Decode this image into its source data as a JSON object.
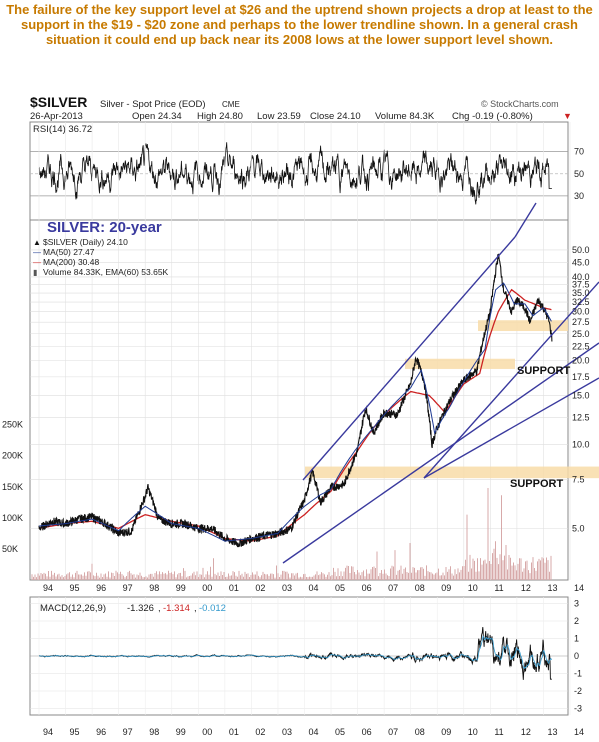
{
  "caption": "The failure of the key support level at $26 and the uptrend shown projects a drop at least to the support in the $19 - $20 zone and perhaps to the lower trendline shown. In a general crash situation it could end up back near its 2008 lows at the lower support level shown.",
  "header": {
    "symbol": "$SILVER",
    "name": "Silver - Spot Price (EOD)",
    "exchange": "CME",
    "date": "26-Apr-2013",
    "open": "Open 24.34",
    "high": "High 24.80",
    "low": "Low 23.59",
    "close": "Close 24.10",
    "volume": "Volume 84.3K",
    "chg": "Chg -0.19 (-0.80%)",
    "brand": "© StockCharts.com"
  },
  "colors": {
    "price": "#1a1a1a",
    "ma50": "#1f3a93",
    "ma200": "#cc2222",
    "trendline": "#3a3a9e",
    "support": "#f8dca8",
    "volume": "#d7a9a9",
    "caption": "#c77a00",
    "annotation": "#3a3a9e",
    "macd_signal": "#3399cc"
  },
  "chart_data": {
    "type": "line",
    "years": [
      "94",
      "95",
      "96",
      "97",
      "98",
      "99",
      "00",
      "01",
      "02",
      "03",
      "04",
      "05",
      "06",
      "07",
      "08",
      "09",
      "10",
      "11",
      "12",
      "13",
      "14"
    ],
    "annotations": {
      "title": "SILVER: 20-year",
      "support_upper": "SUPPORT",
      "support_lower": "SUPPORT"
    },
    "rsi": {
      "label": "RSI(14) 36.72",
      "value": 36.72,
      "ticks": [
        "70",
        "50",
        "30"
      ],
      "ylim": [
        10,
        95
      ]
    },
    "price": {
      "legend": [
        "$SILVER (Daily) 24.10",
        "MA(50) 27.47",
        "MA(200) 30.48",
        "Volume 84.33K, EMA(60) 53.65K"
      ],
      "ticks": [
        "50.0",
        "45.0",
        "40.0",
        "37.5",
        "35.0",
        "32.5",
        "30.0",
        "27.5",
        "25.0",
        "22.5",
        "20.0",
        "17.5",
        "15.0",
        "12.5",
        "10.0",
        "7.5",
        "5.0"
      ],
      "tick_values": [
        50,
        45,
        40,
        37.5,
        35,
        32.5,
        30,
        27.5,
        25,
        22.5,
        20,
        17.5,
        15,
        12.5,
        10,
        7.5,
        5
      ],
      "scale": "log",
      "ylim": [
        3.4,
        58
      ],
      "volume_ticks": [
        "250K",
        "200K",
        "150K",
        "100K",
        "50K"
      ],
      "volume_tick_values": [
        250,
        200,
        150,
        100,
        50
      ],
      "series": [
        {
          "name": "$SILVER",
          "x": [
            1994.0,
            1994.5,
            1995.0,
            1995.5,
            1996.0,
            1996.5,
            1997.0,
            1997.5,
            1998.0,
            1998.1,
            1998.5,
            1999.0,
            1999.5,
            2000.0,
            2000.5,
            2001.0,
            2001.5,
            2002.0,
            2002.5,
            2003.0,
            2003.5,
            2004.0,
            2004.3,
            2004.6,
            2005.0,
            2005.5,
            2006.0,
            2006.3,
            2006.6,
            2007.0,
            2007.5,
            2008.0,
            2008.2,
            2008.5,
            2008.8,
            2009.0,
            2009.5,
            2010.0,
            2010.5,
            2011.0,
            2011.3,
            2011.5,
            2011.8,
            2012.0,
            2012.3,
            2012.5,
            2012.8,
            2013.0,
            2013.2,
            2013.32
          ],
          "y": [
            5.0,
            5.3,
            5.2,
            5.4,
            5.5,
            5.2,
            4.8,
            4.9,
            6.5,
            7.0,
            5.4,
            5.2,
            5.2,
            5.0,
            5.0,
            4.6,
            4.4,
            4.6,
            4.7,
            4.8,
            5.0,
            6.3,
            8.0,
            6.2,
            7.0,
            7.2,
            9.5,
            13.5,
            11.0,
            13.0,
            12.8,
            16.5,
            20.5,
            17.0,
            10.0,
            11.5,
            14.5,
            17.0,
            18.5,
            30.0,
            48.0,
            36.0,
            30.0,
            33.0,
            31.0,
            27.5,
            33.0,
            31.0,
            28.0,
            24.1
          ]
        },
        {
          "name": "MA(50)",
          "x": [
            1994.0,
            1995.0,
            1996.0,
            1997.0,
            1998.0,
            1998.5,
            1999.0,
            2000.0,
            2001.0,
            2002.0,
            2003.0,
            2004.0,
            2004.6,
            2005.0,
            2006.0,
            2006.6,
            2007.0,
            2008.0,
            2008.4,
            2008.9,
            2009.5,
            2010.0,
            2010.8,
            2011.2,
            2011.5,
            2011.9,
            2012.3,
            2012.6,
            2013.0,
            2013.32
          ],
          "y": [
            5.1,
            5.2,
            5.4,
            4.9,
            6.0,
            5.6,
            5.2,
            5.0,
            4.5,
            4.6,
            4.8,
            6.0,
            6.6,
            6.9,
            9.8,
            11.5,
            12.8,
            16.0,
            18.5,
            11.0,
            13.8,
            16.8,
            22.0,
            36.0,
            38.0,
            32.0,
            32.0,
            29.0,
            31.0,
            27.47
          ]
        },
        {
          "name": "MA(200)",
          "x": [
            1994.0,
            1995.0,
            1996.0,
            1997.0,
            1998.0,
            1999.0,
            2000.0,
            2001.0,
            2002.0,
            2003.0,
            2004.0,
            2005.0,
            2006.0,
            2007.0,
            2008.0,
            2008.7,
            2009.3,
            2010.0,
            2010.6,
            2011.3,
            2011.8,
            2012.3,
            2013.0,
            2013.32
          ],
          "y": [
            5.0,
            5.2,
            5.3,
            5.0,
            5.6,
            5.3,
            5.1,
            4.6,
            4.5,
            4.7,
            5.6,
            6.8,
            9.5,
            12.8,
            15.5,
            15.0,
            13.0,
            16.5,
            18.0,
            30.0,
            36.0,
            33.0,
            31.0,
            30.48
          ]
        }
      ],
      "support_zones": [
        {
          "label": "SUPPORT",
          "low": 19.0,
          "high": 20.0
        },
        {
          "label": "SUPPORT",
          "low": 7.7,
          "high": 8.2
        },
        {
          "label": "",
          "low": 26.0,
          "high": 27.5
        }
      ]
    },
    "macd": {
      "label": "MACD(12,26,9)",
      "values": [
        "-1.326",
        "-1.314",
        "-0.012"
      ],
      "ticks": [
        "3",
        "2",
        "1",
        "0",
        "-1",
        "-2",
        "-3"
      ],
      "tick_values": [
        3,
        2,
        1,
        0,
        -1,
        -2,
        -3
      ],
      "ylim": [
        -3.2,
        3.2
      ]
    }
  }
}
